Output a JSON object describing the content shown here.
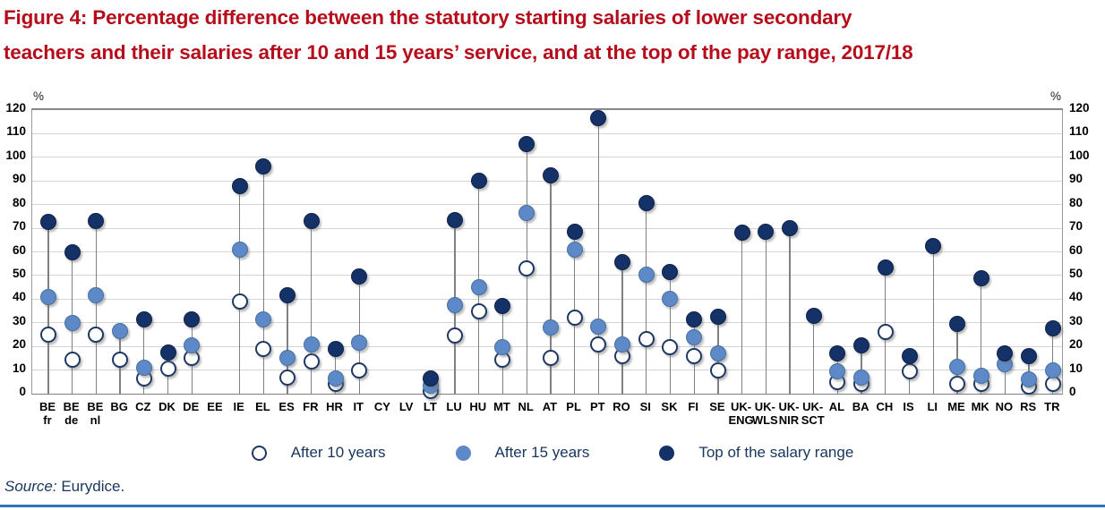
{
  "title_lines": [
    "Figure 4: Percentage difference between the statutory starting salaries of lower secondary",
    "teachers and their salaries after 10 and 15 years’ service, and at the top of the pay range, 2017/18"
  ],
  "axis": {
    "unit": "%"
  },
  "source": {
    "label": "Source:",
    "text": " Eurydice."
  },
  "colors": {
    "title_red": "#b60d1c",
    "text_navy": "#17365d",
    "dot_blue": "#5d89c8",
    "dot_dark": "#143168",
    "dot_open_border": "#1f3864",
    "grid_line": "#d4d4d4",
    "axis_line": "#7f7f7f",
    "axis_top": "#85888f",
    "stem_line": "#808080",
    "bottom_rule": "#2e75b6"
  },
  "chart_data": {
    "type": "scatter",
    "subtype": "lollipop-dot-plot",
    "title": "Percentage difference between the statutory starting salaries of lower secondary teachers and their salaries after 10 and 15 years' service, and at the top of the pay range, 2017/18",
    "ylabel": "%",
    "ylim": [
      0,
      120
    ],
    "ystep": 10,
    "grid": "horizontal",
    "legend_position": "bottom-center",
    "categories": [
      {
        "code": "BE",
        "sub": "fr"
      },
      {
        "code": "BE",
        "sub": "de"
      },
      {
        "code": "BE",
        "sub": "nl"
      },
      {
        "code": "BG",
        "sub": ""
      },
      {
        "code": "CZ",
        "sub": ""
      },
      {
        "code": "DK",
        "sub": ""
      },
      {
        "code": "DE",
        "sub": ""
      },
      {
        "code": "EE",
        "sub": ""
      },
      {
        "code": "IE",
        "sub": ""
      },
      {
        "code": "EL",
        "sub": ""
      },
      {
        "code": "ES",
        "sub": ""
      },
      {
        "code": "FR",
        "sub": ""
      },
      {
        "code": "HR",
        "sub": ""
      },
      {
        "code": "IT",
        "sub": ""
      },
      {
        "code": "CY",
        "sub": ""
      },
      {
        "code": "LV",
        "sub": ""
      },
      {
        "code": "LT",
        "sub": ""
      },
      {
        "code": "LU",
        "sub": ""
      },
      {
        "code": "HU",
        "sub": ""
      },
      {
        "code": "MT",
        "sub": ""
      },
      {
        "code": "NL",
        "sub": ""
      },
      {
        "code": "AT",
        "sub": ""
      },
      {
        "code": "PL",
        "sub": ""
      },
      {
        "code": "PT",
        "sub": ""
      },
      {
        "code": "RO",
        "sub": ""
      },
      {
        "code": "SI",
        "sub": ""
      },
      {
        "code": "SK",
        "sub": ""
      },
      {
        "code": "FI",
        "sub": ""
      },
      {
        "code": "SE",
        "sub": ""
      },
      {
        "code": "UK-",
        "sub": "ENG"
      },
      {
        "code": "UK-",
        "sub": "WLS"
      },
      {
        "code": "UK-",
        "sub": "NIR"
      },
      {
        "code": "UK-",
        "sub": "SCT"
      },
      {
        "code": "AL",
        "sub": ""
      },
      {
        "code": "BA",
        "sub": ""
      },
      {
        "code": "CH",
        "sub": ""
      },
      {
        "code": "IS",
        "sub": ""
      },
      {
        "code": "LI",
        "sub": ""
      },
      {
        "code": "ME",
        "sub": ""
      },
      {
        "code": "MK",
        "sub": ""
      },
      {
        "code": "NO",
        "sub": ""
      },
      {
        "code": "RS",
        "sub": ""
      },
      {
        "code": "TR",
        "sub": ""
      }
    ],
    "series": [
      {
        "key": "after10",
        "name": "After 10 years",
        "style": "open",
        "values": [
          25,
          14.5,
          25,
          14.5,
          6.5,
          10.5,
          15,
          null,
          39,
          19,
          7,
          13.5,
          4,
          10,
          null,
          null,
          1,
          24.5,
          35,
          14.5,
          53,
          15,
          32,
          21,
          16,
          23,
          19.5,
          16,
          10,
          null,
          null,
          null,
          null,
          5,
          4,
          26,
          9.5,
          null,
          4,
          4,
          null,
          3,
          4
        ]
      },
      {
        "key": "after15",
        "name": "After 15 years",
        "style": "blue",
        "values": [
          41,
          30,
          41.5,
          26.5,
          11,
          null,
          20.5,
          null,
          61,
          31.5,
          15,
          21,
          6.5,
          21.5,
          null,
          null,
          3.5,
          37.5,
          45,
          19.5,
          76.5,
          28,
          61,
          28.5,
          21,
          50.5,
          40,
          24,
          17,
          null,
          null,
          null,
          null,
          9.5,
          7,
          null,
          null,
          null,
          11.5,
          7.5,
          12.5,
          6,
          10
        ]
      },
      {
        "key": "top",
        "name": "Top of the salary range",
        "style": "dark",
        "values": [
          72.5,
          60,
          73,
          null,
          31.5,
          17.5,
          31.5,
          null,
          88,
          96,
          41.5,
          73,
          19,
          49.5,
          null,
          null,
          6.5,
          73.5,
          90,
          37,
          105.5,
          92.5,
          68.5,
          116.5,
          55.5,
          80.5,
          51.5,
          31.5,
          32.5,
          68,
          68.5,
          70,
          33,
          17,
          20.5,
          53.5,
          16,
          62.5,
          29.5,
          49,
          17,
          16,
          27.5
        ]
      }
    ]
  }
}
